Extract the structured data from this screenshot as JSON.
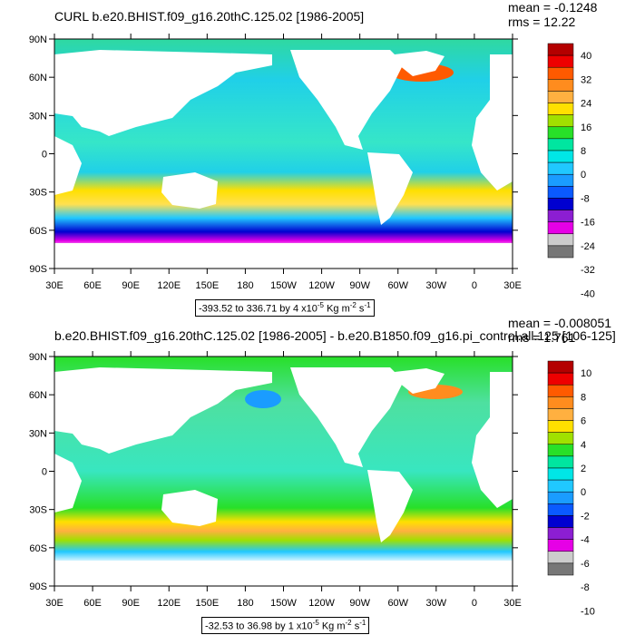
{
  "panels": [
    {
      "title": "CURL b.e20.BHIST.f09_g16.20thC.125.02 [1986-2005]",
      "mean_label": "mean = -0.1248",
      "rms_label": "rms = 12.22",
      "range_text": "-393.52 to 336.71 by 4 x10",
      "range_exp": "-5",
      "range_units": " Kg m",
      "range_units_exp": "-2",
      "range_units_tail": " s",
      "range_units_tail_exp": "-1",
      "colorbar_labels": [
        "40",
        "32",
        "24",
        "16",
        "8",
        "0",
        "-8",
        "-16",
        "-24",
        "-32",
        "-40"
      ]
    },
    {
      "title": "b.e20.BHIST.f09_g16.20thC.125.02 [1986-2005] - b.e20.B1850.f09_g16.pi_control.all.125 [106-125]",
      "mean_label": "mean = -0.008051",
      "rms_label": "rms = 1.761",
      "range_text": "-32.53 to 36.98 by 1 x10",
      "range_exp": "-5",
      "range_units": " Kg m",
      "range_units_exp": "-2",
      "range_units_tail": " s",
      "range_units_tail_exp": "-1",
      "colorbar_labels": [
        "10",
        "8",
        "6",
        "4",
        "2",
        "0",
        "-2",
        "-4",
        "-6",
        "-8",
        "-10"
      ]
    }
  ],
  "lat_labels": [
    "90N",
    "60N",
    "30N",
    "0",
    "30S",
    "60S",
    "90S"
  ],
  "lon_labels": [
    "30E",
    "60E",
    "90E",
    "120E",
    "150E",
    "180",
    "150W",
    "120W",
    "90W",
    "60W",
    "30W",
    "0",
    "30E"
  ],
  "colors": {
    "colorbar": [
      "#b40000",
      "#ee0000",
      "#ff5a00",
      "#ff8c1e",
      "#ffb040",
      "#ffe000",
      "#a0e000",
      "#28e028",
      "#00e6a0",
      "#00e6e6",
      "#20c8ff",
      "#1a9cff",
      "#0a5aff",
      "#0000d0",
      "#8c1ed2",
      "#e600e6",
      "#cccccc",
      "#777777"
    ],
    "ocean_base_top": "#63eef0",
    "ocean_base_bottom": "#8ae6d8",
    "land": "#ffffff"
  }
}
